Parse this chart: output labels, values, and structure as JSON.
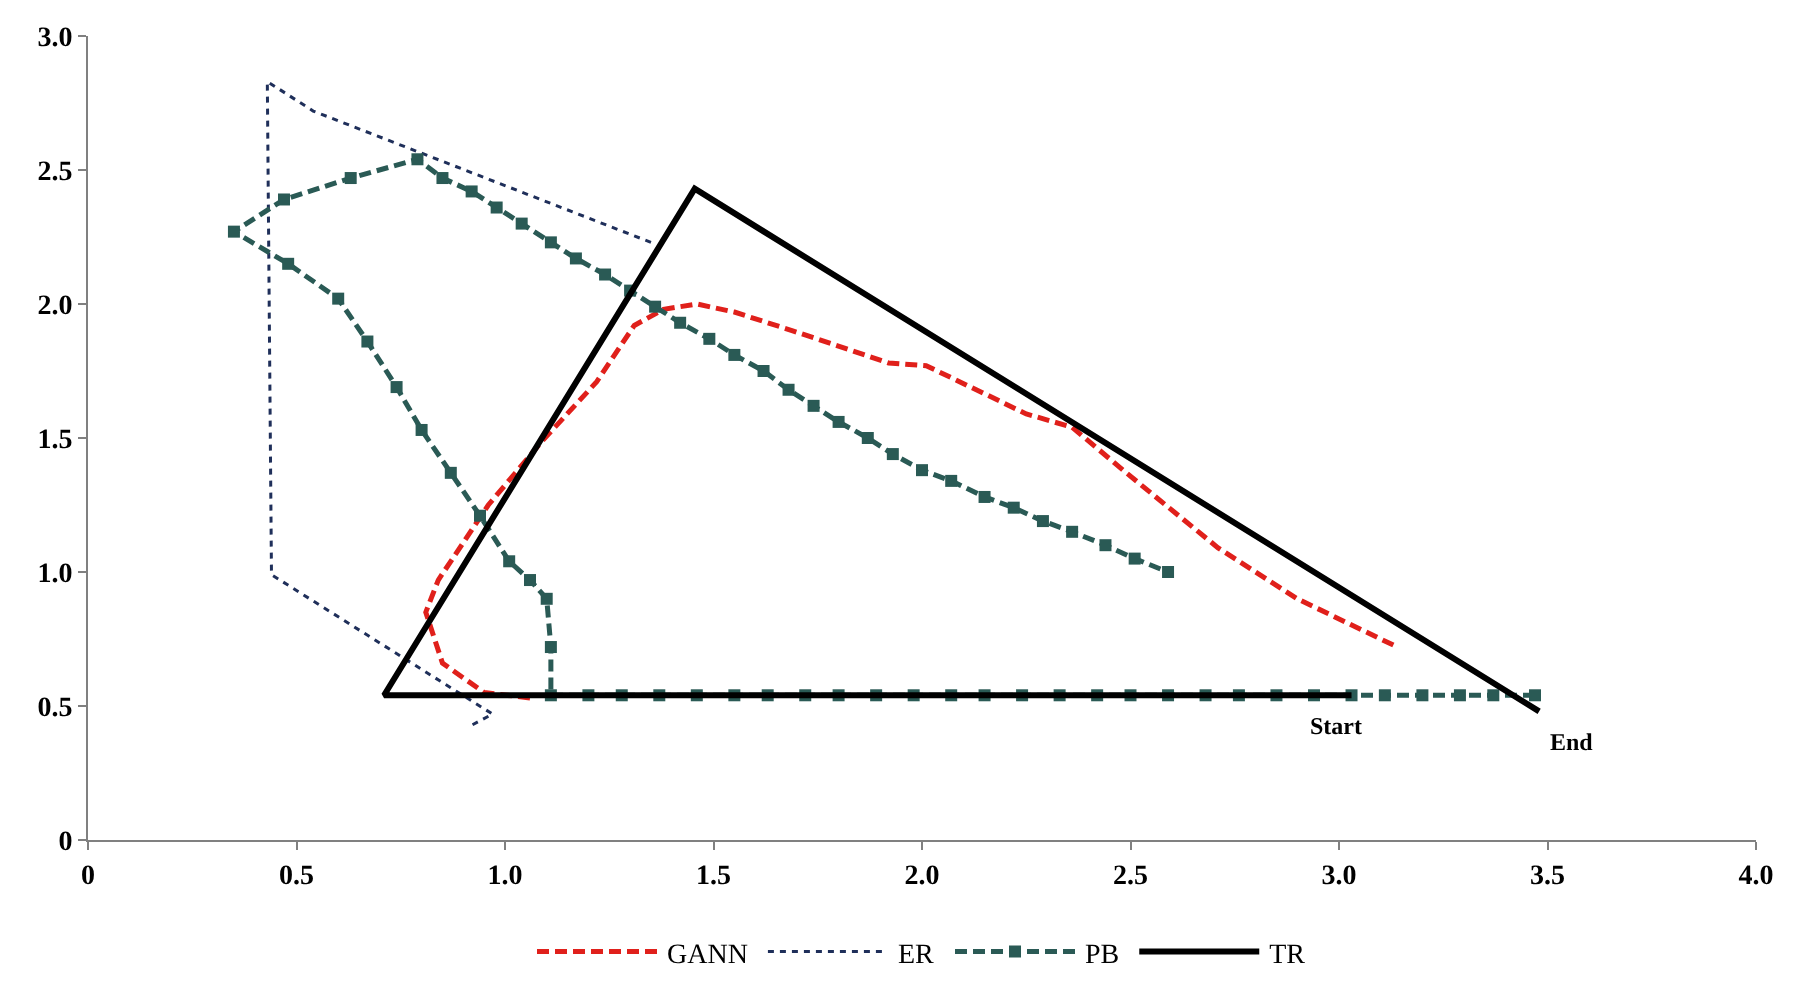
{
  "chart_data": {
    "type": "line",
    "xlim": [
      0,
      4
    ],
    "ylim": [
      0,
      3
    ],
    "xticks": [
      0,
      0.5,
      {
        "value": 1,
        "label": "1.0"
      },
      1.5,
      {
        "value": 2,
        "label": "2.0"
      },
      2.5,
      {
        "value": 3,
        "label": "3.0"
      },
      3.5,
      {
        "value": 4,
        "label": "4.0"
      }
    ],
    "yticks": [
      0,
      0.5,
      {
        "value": 1,
        "label": "1.0"
      },
      1.5,
      {
        "value": 2,
        "label": "2.0"
      },
      2.5,
      {
        "value": 3,
        "label": "3.0"
      }
    ],
    "legend": "bottom",
    "series": [
      {
        "name": "GANN",
        "color": "#e0201b",
        "line_style": "dashed",
        "marker": "none",
        "x": [
          1.06,
          0.95,
          0.85,
          0.81,
          0.84,
          0.96,
          1.09,
          1.22,
          1.31,
          1.38,
          1.46,
          1.55,
          1.69,
          1.92,
          2.01,
          2.25,
          2.36,
          2.49,
          2.71,
          2.9,
          3.14
        ],
        "values": [
          0.53,
          0.55,
          0.66,
          0.85,
          0.97,
          1.25,
          1.49,
          1.71,
          1.92,
          1.98,
          2.0,
          1.97,
          1.9,
          1.78,
          1.77,
          1.59,
          1.54,
          1.37,
          1.09,
          0.9,
          0.72
        ]
      },
      {
        "name": "ER",
        "color": "#1f2f5a",
        "line_style": "dotted",
        "marker": "none",
        "x": [
          1.35,
          0.54,
          0.43,
          0.44,
          0.97,
          0.91
        ],
        "values": [
          2.23,
          2.72,
          2.83,
          0.99,
          0.47,
          0.42
        ]
      },
      {
        "name": "PB",
        "color": "#2a5a55",
        "line_style": "dashed",
        "marker": "square",
        "x": [
          3.47,
          3.37,
          3.29,
          3.2,
          3.11,
          3.03,
          2.94,
          2.85,
          2.76,
          2.68,
          2.59,
          2.5,
          2.42,
          2.33,
          2.24,
          2.15,
          2.07,
          1.98,
          1.89,
          1.8,
          1.72,
          1.63,
          1.55,
          1.46,
          1.37,
          1.28,
          1.2,
          1.11,
          1.11,
          1.1,
          1.06,
          1.01,
          0.94,
          0.87,
          0.8,
          0.74,
          0.67,
          0.6,
          0.48,
          0.35,
          0.47,
          0.63,
          0.79,
          0.85,
          0.92,
          0.98,
          1.04,
          1.11,
          1.17,
          1.24,
          1.3,
          1.36,
          1.42,
          1.49,
          1.55,
          1.62,
          1.68,
          1.74,
          1.8,
          1.87,
          1.93,
          2.0,
          2.07,
          2.15,
          2.22,
          2.29,
          2.36,
          2.44,
          2.51,
          2.59
        ],
        "values": [
          0.54,
          0.54,
          0.54,
          0.54,
          0.54,
          0.54,
          0.54,
          0.54,
          0.54,
          0.54,
          0.54,
          0.54,
          0.54,
          0.54,
          0.54,
          0.54,
          0.54,
          0.54,
          0.54,
          0.54,
          0.54,
          0.54,
          0.54,
          0.54,
          0.54,
          0.54,
          0.54,
          0.54,
          0.72,
          0.9,
          0.97,
          1.04,
          1.21,
          1.37,
          1.53,
          1.69,
          1.86,
          2.02,
          2.15,
          2.27,
          2.39,
          2.47,
          2.54,
          2.47,
          2.42,
          2.36,
          2.3,
          2.23,
          2.17,
          2.11,
          2.05,
          1.99,
          1.93,
          1.87,
          1.81,
          1.75,
          1.68,
          1.62,
          1.56,
          1.5,
          1.44,
          1.38,
          1.34,
          1.28,
          1.24,
          1.19,
          1.15,
          1.1,
          1.05,
          1.0
        ]
      },
      {
        "name": "TR",
        "color": "#000000",
        "line_style": "solid",
        "marker": "none",
        "x": [
          3.03,
          0.71,
          1.455,
          3.48
        ],
        "values": [
          0.54,
          0.54,
          2.43,
          0.48
        ]
      }
    ],
    "annotations": [
      {
        "text": "Start",
        "x": 3.03,
        "y": 0.54
      },
      {
        "text": "End",
        "x": 3.48,
        "y": 0.48
      }
    ]
  }
}
